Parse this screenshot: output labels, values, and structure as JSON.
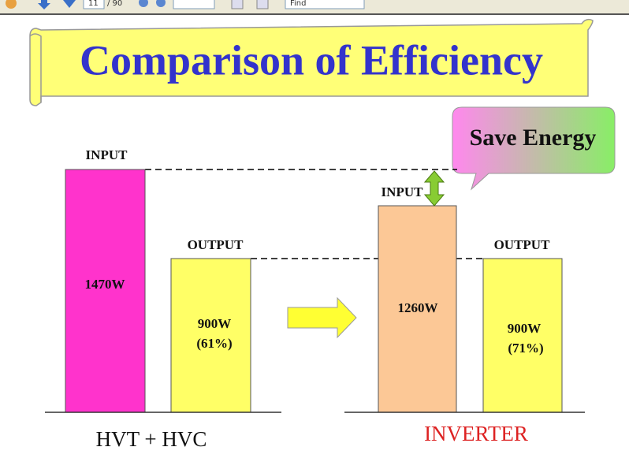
{
  "toolbar": {
    "page": "11",
    "pages": "/ 90",
    "search": "Find"
  },
  "slide": {
    "title": "Comparison of Efficiency",
    "callout": "Save Energy",
    "left": {
      "caption": "HVT + HVC",
      "input": {
        "label": "INPUT",
        "value": "1470W"
      },
      "output": {
        "label": "OUTPUT",
        "value": "900W",
        "percent": "(61%)"
      }
    },
    "right": {
      "caption": "INVERTER",
      "input": {
        "label": "INPUT",
        "value": "1260W"
      },
      "output": {
        "label": "OUTPUT",
        "value": "900W",
        "percent": "(71%)"
      }
    }
  }
}
